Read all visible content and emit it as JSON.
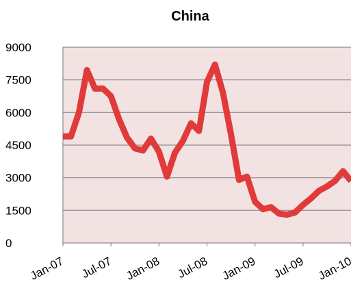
{
  "chart_data": {
    "type": "line",
    "title": "China",
    "xlabel": "",
    "ylabel": "",
    "ylim": [
      0,
      9000
    ],
    "yticks": [
      0,
      1500,
      3000,
      4500,
      6000,
      7500,
      9000
    ],
    "ytick_labels": [
      "0",
      "1500",
      "3000",
      "4500",
      "6000",
      "7500",
      "9000"
    ],
    "xlim": [
      "2007-01",
      "2010-01"
    ],
    "xtick_labels": [
      "Jan-07",
      "Jul-07",
      "Jan-08",
      "Jul-08",
      "Jan-09",
      "Jul-09",
      "Jan-10"
    ],
    "grid": true,
    "legend": "none",
    "colors": {
      "line": "#e03a3a",
      "plot_background": "#f2e2e2",
      "grid": "#8c8c8c",
      "axis": "#8c8c8c",
      "text": "#000000"
    },
    "series": [
      {
        "x": [
          "2007-01",
          "2007-02",
          "2007-03",
          "2007-04",
          "2007-05",
          "2007-06",
          "2007-07",
          "2007-08",
          "2007-09",
          "2007-10",
          "2007-11",
          "2007-12",
          "2008-01",
          "2008-02",
          "2008-03",
          "2008-04",
          "2008-05",
          "2008-06",
          "2008-07",
          "2008-08",
          "2008-09",
          "2008-10",
          "2008-11",
          "2008-12",
          "2009-01",
          "2009-02",
          "2009-03",
          "2009-04",
          "2009-05",
          "2009-06",
          "2009-07",
          "2009-08",
          "2009-09",
          "2009-10",
          "2009-11",
          "2009-12",
          "2010-01"
        ],
        "values": [
          4900,
          4900,
          6000,
          7950,
          7100,
          7100,
          6750,
          5700,
          4850,
          4350,
          4250,
          4800,
          4200,
          3050,
          4150,
          4700,
          5500,
          5150,
          7400,
          8200,
          6900,
          5000,
          2900,
          3050,
          1900,
          1550,
          1650,
          1350,
          1300,
          1400,
          1750,
          2050,
          2400,
          2600,
          2850,
          3300,
          2850
        ]
      }
    ]
  }
}
